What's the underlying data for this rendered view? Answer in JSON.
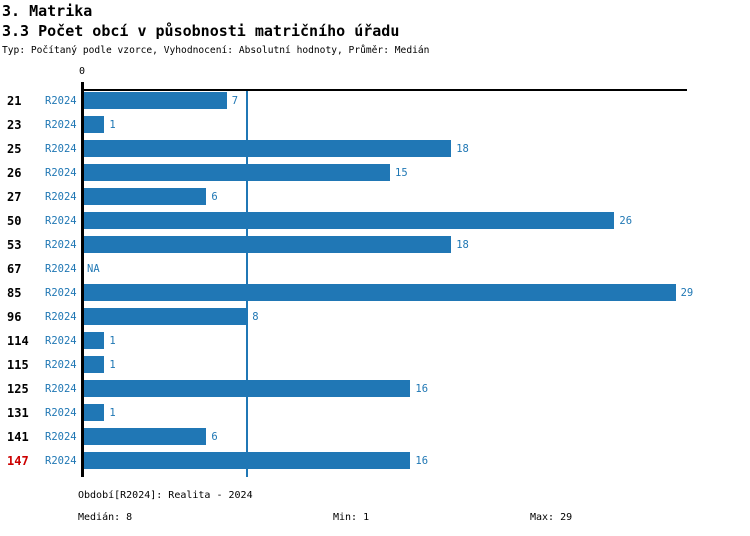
{
  "header": {
    "title": "3. Matrika",
    "subtitle": "3.3 Počet obcí v působnosti matričního úřadu",
    "meta": "Typ: Počítaný podle vzorce, Vyhodnocení: Absolutní hodnoty, Průměr: Medián"
  },
  "chart_data": {
    "type": "bar",
    "orientation": "horizontal",
    "title": "3.3 Počet obcí v působnosti matričního úřadu",
    "categories": [
      "21",
      "23",
      "25",
      "26",
      "27",
      "50",
      "53",
      "67",
      "85",
      "96",
      "114",
      "115",
      "125",
      "131",
      "141",
      "147"
    ],
    "series": [
      {
        "name": "R2024",
        "values": [
          7,
          1,
          18,
          15,
          6,
          26,
          18,
          null,
          29,
          8,
          1,
          1,
          16,
          1,
          6,
          16
        ]
      }
    ],
    "na_text": "NA",
    "highlighted_category": "147",
    "axis": {
      "zero_label": "0",
      "xmin": 0,
      "xmax": 29.7,
      "median_reference_value": 8,
      "grid": false
    },
    "legend_position": "none",
    "colors": {
      "bar": "#2077b5",
      "value_label": "#1f77b4",
      "series_label": "#1f77b4",
      "median_line": "#2077b5",
      "category_label": "#000000",
      "highlight_category": "#cc0000",
      "axis": "#000000"
    }
  },
  "footer": {
    "period": "Období[R2024]: Realita - 2024",
    "median": "Medián: 8",
    "min": "Min: 1",
    "max": "Max: 29"
  }
}
